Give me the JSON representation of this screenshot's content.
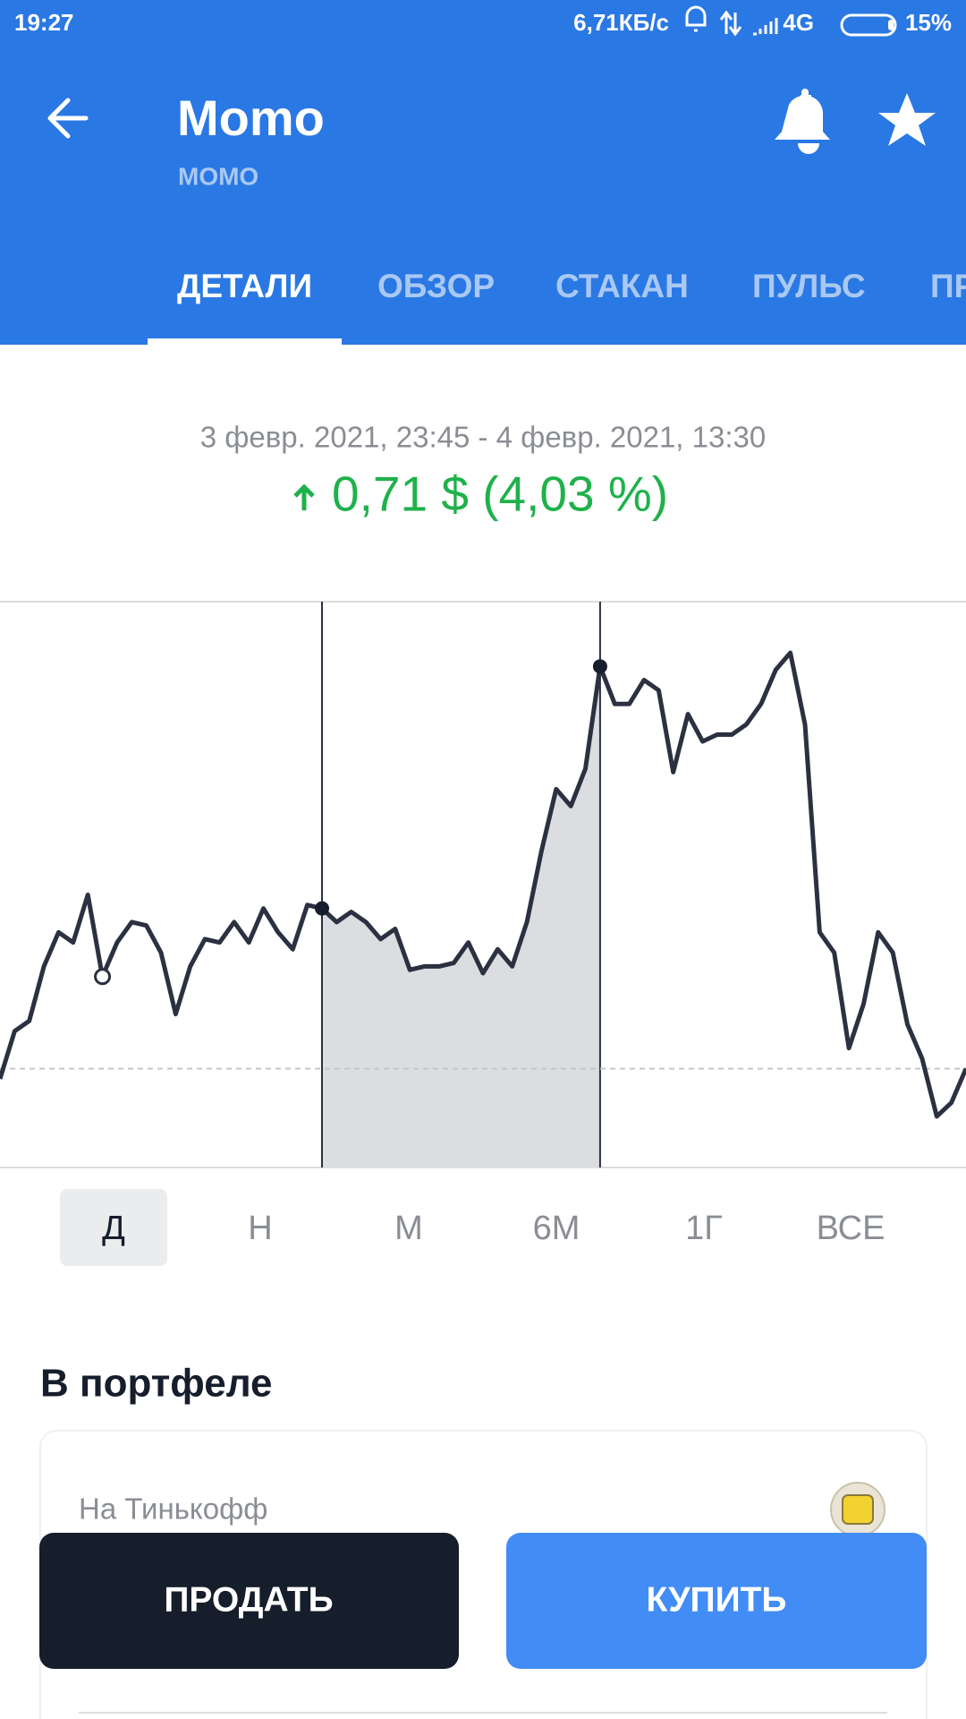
{
  "status_bar": {
    "time": "19:27",
    "speed": "6,71КБ/с",
    "network": "4G",
    "battery": "15%"
  },
  "header": {
    "title": "Momo",
    "ticker": "MOMO"
  },
  "tabs": [
    "ДЕТАЛИ",
    "ОБЗОР",
    "СТАКАН",
    "ПУЛЬС",
    "ПР"
  ],
  "active_tab": 0,
  "period": "3 февр. 2021, 23:45 - 4 февр. 2021, 13:30",
  "change": "0,71 $ (4,03 %)",
  "chart_data": {
    "type": "line",
    "values": [
      17.12,
      17.26,
      17.29,
      17.45,
      17.55,
      17.52,
      17.66,
      17.42,
      17.52,
      17.58,
      17.57,
      17.49,
      17.31,
      17.45,
      17.53,
      17.52,
      17.58,
      17.52,
      17.62,
      17.55,
      17.5,
      17.63,
      17.62,
      17.58,
      17.61,
      17.58,
      17.53,
      17.56,
      17.44,
      17.45,
      17.45,
      17.46,
      17.52,
      17.43,
      17.5,
      17.45,
      17.58,
      17.79,
      17.97,
      17.92,
      18.03,
      18.33,
      18.22,
      18.22,
      18.29,
      18.26,
      18.02,
      18.19,
      18.11,
      18.13,
      18.13,
      18.16,
      18.22,
      18.32,
      18.37,
      18.16,
      17.55,
      17.49,
      17.21,
      17.34,
      17.55,
      17.49,
      17.28,
      17.18,
      17.01,
      17.05,
      17.15
    ],
    "ylim": [
      16.86,
      18.52
    ],
    "baseline": 17.15,
    "selection": [
      22,
      41
    ],
    "marker": 7,
    "color": "#2b3140",
    "selection_color": "#dcdde0"
  },
  "ranges": [
    "Д",
    "Н",
    "М",
    "6М",
    "1Г",
    "ВСЕ"
  ],
  "active_range": 0,
  "portfolio": {
    "title": "В портфеле",
    "account": "На Тинькофф"
  },
  "buttons": {
    "sell": "ПРОДАТЬ",
    "buy": "КУПИТЬ"
  }
}
